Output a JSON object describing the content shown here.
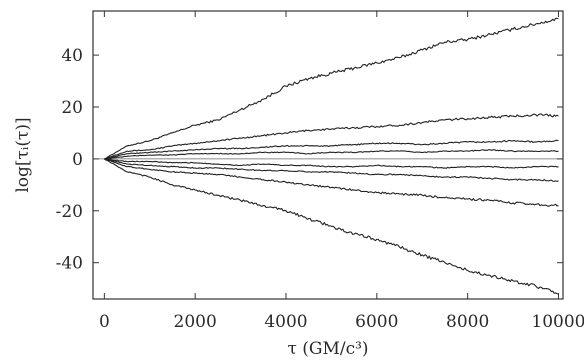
{
  "chart_data": {
    "type": "line",
    "title": "",
    "xlabel": "τ (GM/c³)",
    "ylabel": "log[τᵢ(τ)]",
    "xlim": [
      -250,
      10100
    ],
    "ylim": [
      -54,
      57
    ],
    "xticks": [
      0,
      2000,
      4000,
      6000,
      8000,
      10000
    ],
    "yticks": [
      -40,
      -20,
      0,
      20,
      40
    ],
    "xtick_labels": [
      "0",
      "2000",
      "4000",
      "6000",
      "8000",
      "10000"
    ],
    "ytick_labels": [
      "-40",
      "-20",
      "0",
      "20",
      "40"
    ],
    "grid": false,
    "zero_line": true,
    "colors": {
      "line": "#222222",
      "axis": "#333333"
    },
    "x": [
      0,
      500,
      1000,
      1500,
      2000,
      2500,
      3000,
      3500,
      4000,
      4500,
      5000,
      5500,
      6000,
      6500,
      7000,
      7500,
      8000,
      8500,
      9000,
      9500,
      10000
    ],
    "series": [
      {
        "values": [
          0,
          5,
          7,
          10,
          13,
          15,
          19,
          23,
          28,
          31,
          33,
          35,
          37,
          39,
          42,
          45,
          46,
          48,
          50,
          52,
          54
        ]
      },
      {
        "values": [
          0,
          3,
          3.5,
          5,
          6,
          7,
          8,
          9,
          10,
          11,
          11.5,
          12,
          12.5,
          13,
          14,
          15,
          15.5,
          16,
          16.5,
          17,
          16.5
        ]
      },
      {
        "values": [
          0,
          2,
          2.5,
          3,
          3.5,
          4,
          4,
          4.5,
          5,
          5,
          5,
          5.5,
          6,
          6,
          5.5,
          6,
          6.5,
          6.5,
          7,
          6.5,
          7
        ]
      },
      {
        "values": [
          0,
          1,
          1.5,
          1.5,
          2,
          2,
          2,
          2.5,
          2.5,
          2,
          2.5,
          2.5,
          3,
          3,
          2.5,
          3,
          3,
          3.5,
          3,
          3,
          3
        ]
      },
      {
        "values": [
          0,
          -1,
          -1,
          -1.5,
          -1.5,
          -2,
          -2.5,
          -2,
          -2.5,
          -2.5,
          -3,
          -3,
          -2.5,
          -3,
          -3,
          -3.5,
          -3,
          -3,
          -3.5,
          -3,
          -3
        ]
      },
      {
        "values": [
          0,
          -2,
          -2.5,
          -3,
          -3.5,
          -3.5,
          -4,
          -4.5,
          -4.5,
          -5,
          -5,
          -5.5,
          -6,
          -6,
          -6.5,
          -7,
          -7,
          -7.5,
          -8,
          -8,
          -8.5
        ]
      },
      {
        "values": [
          0,
          -3,
          -4,
          -5,
          -5.5,
          -6,
          -7,
          -8,
          -9,
          -10,
          -11,
          -12,
          -13,
          -13.5,
          -14,
          -15,
          -15.5,
          -16,
          -17,
          -17.5,
          -18
        ]
      },
      {
        "values": [
          0,
          -5,
          -7,
          -10,
          -12,
          -14,
          -16,
          -18,
          -20,
          -23,
          -26,
          -29,
          -31,
          -34,
          -37,
          -40,
          -43,
          -45,
          -47,
          -49,
          -52
        ]
      }
    ]
  }
}
